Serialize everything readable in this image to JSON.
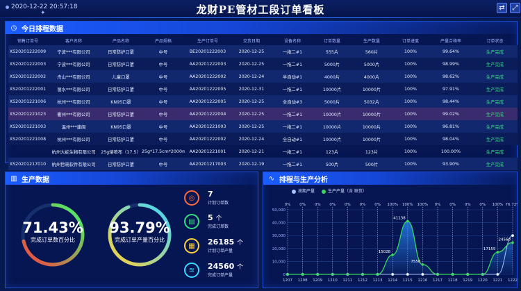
{
  "header": {
    "datetime": "2020-12-22 20:57:18",
    "title": "龙财PE管材工段订单看板",
    "btn_refresh": "⇄",
    "btn_fullscreen": "⤢"
  },
  "today_schedule": {
    "title": "今日排程数据",
    "columns": [
      "销售订单号",
      "客户名称",
      "产品名称",
      "产品规格",
      "生产订单号",
      "交货日期",
      "设备名称",
      "订单数量",
      "生产数量",
      "订单进度",
      "产量合格率",
      "订单状态"
    ],
    "rows": [
      [
        "XS20201222009",
        "宁波***有限公司",
        "日常防护口罩",
        "中号",
        "BE20201222003",
        "2020-12-25",
        "一拖二#1",
        "555片",
        "560片",
        "100%",
        "99.64%",
        "生产完成"
      ],
      [
        "XS20201222003",
        "宁波***有限公司",
        "日常防护口罩",
        "中号",
        "AA20201222003",
        "2020-12-25",
        "一拖二#1",
        "5000片",
        "5000片",
        "100%",
        "98.99%",
        "生产完成"
      ],
      [
        "XS20201222002",
        "舟山***有限公司",
        "儿童口罩",
        "中号",
        "AA20201222002",
        "2020-12-24",
        "半自动#1",
        "4000片",
        "4000片",
        "100%",
        "98.62%",
        "生产完成"
      ],
      [
        "XS20201222001",
        "丽水***有限公司",
        "日常防护口罩",
        "中号",
        "AA20201222005",
        "2020-12-31",
        "一拖二#1",
        "10000片",
        "10000片",
        "100%",
        "97.91%",
        "生产完成"
      ],
      [
        "XS20201221006",
        "杭州***有限公司",
        "KN95口罩",
        "中号",
        "AA20201222005",
        "2020-12-25",
        "全自动#3",
        "5000片",
        "5032片",
        "100%",
        "98.44%",
        "生产完成"
      ],
      [
        "XS20201221023",
        "衢州***有限公司",
        "日常防护口罩",
        "中号",
        "AA20201222004",
        "2020-12-25",
        "一拖二#1",
        "10000片",
        "10000片",
        "100%",
        "99.02%",
        "生产完成"
      ],
      [
        "XS20201221003",
        "温州***建闽",
        "KN95口罩",
        "中号",
        "AA20201221003",
        "2020-12-25",
        "一拖二#1",
        "10000片",
        "10000片",
        "100%",
        "96.81%",
        "生产完成"
      ],
      [
        "XS20201221008",
        "杭州***有限公司",
        "日常防护口罩",
        "中号",
        "AA20201222002",
        "2020-12-24",
        "全自动#1",
        "10000片",
        "10000片",
        "100%",
        "98.04%",
        "生产完成"
      ],
      [
        "",
        "杭州大蛇生物有限公司",
        "25g熔喷布（17.5）",
        "25g*17.5cm*2000m",
        "AA20201221001",
        "2020-12-21",
        "一拖二#1",
        "123片",
        "123片",
        "100%",
        "100.00%",
        "生产完成"
      ],
      [
        "XS20201217010",
        "杭州哲晓软件有限公司",
        "日常防护口罩",
        "中号",
        "AA20201217003",
        "2020-12-19",
        "一拖二#1",
        "500片",
        "500片",
        "100%",
        "93.90%",
        "生产完成"
      ]
    ]
  },
  "production": {
    "title": "生产数据",
    "ring1": {
      "value": "71.43%",
      "label": "完成订单数百分比",
      "fraction": 0.7143,
      "color_from": "#ff3d3d",
      "color_to": "#3bff6a"
    },
    "ring2": {
      "value": "93.79%",
      "label": "完成订单产量百分比",
      "fraction": 0.9379,
      "color_from": "#ffd13b",
      "color_to": "#3bd7ff"
    },
    "stats": [
      {
        "value": "7",
        "unit": "",
        "label": "计划订单数",
        "icon": "target-icon",
        "glyph": "◎",
        "color": "#ff6b3d"
      },
      {
        "value": "5",
        "unit": "个",
        "label": "完成订单数",
        "icon": "clipboard-icon",
        "glyph": "▤",
        "color": "#33e07d"
      },
      {
        "value": "26185",
        "unit": "个",
        "label": "计划订单产量",
        "icon": "document-icon",
        "glyph": "▦",
        "color": "#ffd13b"
      },
      {
        "value": "24560",
        "unit": "个",
        "label": "完成订单产量",
        "icon": "layers-icon",
        "glyph": "≋",
        "color": "#3bd7ff"
      }
    ]
  },
  "analysis": {
    "title": "排程与生产分析",
    "legend": [
      "按期产量",
      "生产产量（含 缺货）"
    ]
  },
  "chart_data": {
    "type": "line",
    "x": [
      "1207",
      "1208",
      "1209",
      "1210",
      "1211",
      "1212",
      "1213",
      "1214",
      "1215",
      "1216",
      "1217",
      "1218",
      "1219",
      "1220",
      "1221",
      "1222"
    ],
    "series": [
      {
        "name": "按期产量",
        "values": [
          0,
          0,
          0,
          0,
          0,
          0,
          0,
          0,
          0,
          0,
          0,
          0,
          0,
          0,
          0,
          30000
        ]
      },
      {
        "name": "生产产量（含 缺货）",
        "values": [
          0,
          0,
          0,
          0,
          0,
          0,
          0,
          15028,
          41138,
          7550,
          0,
          0,
          0,
          0,
          17155,
          24560
        ]
      }
    ],
    "top_labels": [
      "0%",
      "0%",
      "0%",
      "0%",
      "0%",
      "0%",
      "0%",
      "100%",
      "100%",
      "100%",
      "0%",
      "0%",
      "0%",
      "0%",
      "100%",
      "76.72%"
    ],
    "data_labels": [
      {
        "index": 7,
        "text": "15028"
      },
      {
        "index": 8,
        "text": "41138"
      },
      {
        "index": 9,
        "text": "7550"
      },
      {
        "index": 14,
        "text": "17155"
      },
      {
        "index": 15,
        "text": "24560"
      }
    ],
    "yticks": [
      "0",
      "10,000",
      "20,000",
      "30,000",
      "40,000",
      "50,000"
    ],
    "ylim": [
      0,
      50000
    ],
    "line_color": "#38d95c",
    "line2_color": "#a8c4ff"
  }
}
